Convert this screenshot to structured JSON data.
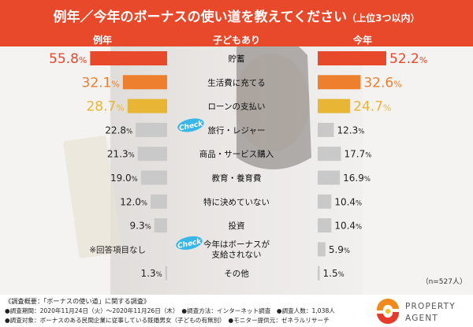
{
  "title": "例年／今年のボーナスの使い道を教えてください",
  "title_note": "（上位3つ以内）",
  "headers": {
    "left": "例年",
    "center": "子どもあり",
    "right": "今年"
  },
  "colors": {
    "title_bg": "#e8492a",
    "title_text": "#ffffff",
    "header_bg": "#e8492a",
    "header_text": "#ffffff",
    "rank1": "#e8492a",
    "rank2": "#ee7f2e",
    "rank3": "#e9b534",
    "other": "#c9c9c9",
    "label_other": "#222222",
    "check_badge": "#39b7e8",
    "logo_orange": "#f08a1c",
    "logo_red": "#e43b2a"
  },
  "check_label": "Check",
  "chart_data": {
    "type": "bar",
    "orientation": "horizontal-butterfly",
    "title": "例年／今年のボーナスの使い道を教えてください",
    "unit": "%",
    "xlim": [
      0,
      60
    ],
    "categories": [
      "貯蓄",
      "生活費に充てる",
      "ローンの支払い",
      "旅行・レジャー",
      "商品・サービス購入",
      "教育・養育費",
      "特に決めていない",
      "投資",
      "今年はボーナスが\n支給されない",
      "その他"
    ],
    "series": [
      {
        "name": "例年",
        "values": [
          55.8,
          32.1,
          28.7,
          22.8,
          21.3,
          19.0,
          12.0,
          9.3,
          null,
          1.3
        ],
        "labels": [
          "55.8",
          "32.1",
          "28.7",
          "22.8",
          "21.3",
          "19.0",
          "12.0",
          "9.3",
          "※回答項目なし",
          "1.3"
        ]
      },
      {
        "name": "今年",
        "values": [
          52.2,
          32.6,
          24.7,
          12.3,
          17.7,
          16.9,
          10.4,
          10.4,
          5.9,
          1.5
        ],
        "labels": [
          "52.2",
          "32.6",
          "24.7",
          "12.3",
          "17.7",
          "16.9",
          "10.4",
          "10.4",
          "5.9",
          "1.5"
        ]
      }
    ],
    "check_rows": [
      3,
      8
    ],
    "n_label": "（n=527人）"
  },
  "footer": {
    "lines": [
      "《調査概要：「ボーナスの使い道」に関する調査》",
      "●調査期間：2020年11月24日（火）～2020年11月26日（木）　●調査方法：インターネット調査　●調査人数：1,038人",
      "●調査対象：ボーナスのある民間企業に従事している既婚男女（子どもの有無別）　●モニター提供元：ゼネラルリサーチ"
    ]
  },
  "logo": {
    "line1": "PROPERTY",
    "line2": "AGENT"
  }
}
